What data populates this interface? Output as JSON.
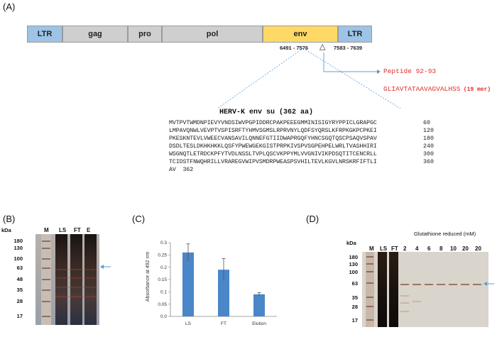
{
  "panel_a": {
    "label": "(A)",
    "genome": {
      "segments": [
        {
          "label": "LTR"
        },
        {
          "label": "gag"
        },
        {
          "label": "pro"
        },
        {
          "label": "pol"
        },
        {
          "label": "env"
        },
        {
          "label": "LTR"
        }
      ],
      "coord_env": "6491 - 7576",
      "coord_ltr": "7583 - 7639",
      "marker": "△"
    },
    "peptide": {
      "title": "Peptide 92-93",
      "sequence": "GLIAVTATAAVAGVALHSS",
      "length": "(19 mer)"
    },
    "sequence_block": {
      "title": "HERV-K env su (362 aa)",
      "lines": [
        {
          "seq": "MVTPVTWMDNPIEVYVNDSIWVPGPIDDRCPAKPEEEGMMINISIGYRYPPICLGRAPGC",
          "num": "60"
        },
        {
          "seq": "LMPAVQNWLVEVPTVSPISRFTYHMVSGMSLRPRVNYLQDFSYQRSLKFRPKGKPCPKEI",
          "num": "120"
        },
        {
          "seq": "PKESKNTEVLVWEECVANSAVILQNNEFGTIIDWAPRGQFYHNCSGQTQSCPSAQVSPAV",
          "num": "180"
        },
        {
          "seq": "DSDLTESLDKHKHKKLQSFYPWEWGEKGISTPRPKIVSPVSGPEHPELWRLTVASHHIRI",
          "num": "240"
        },
        {
          "seq": "WSGNQTLETRDCKPFYTVDLNSSLTVPLQSCVKPPYMLVVGNIVIKPDSQTITCENCRLL",
          "num": "300"
        },
        {
          "seq": "TCIDSTFNWQHRILLVRAREGVWIPVSMDRPWEASPSVHILTEVLKGVLNRSKRFIFTLI",
          "num": "360"
        },
        {
          "seq": "AV  362",
          "num": ""
        }
      ]
    }
  },
  "panel_b": {
    "label": "(B)",
    "kda": "kDa",
    "lanes": [
      "M",
      "LS",
      "FT",
      "E"
    ],
    "markers": [
      "180",
      "130",
      "100",
      "63",
      "48",
      "35",
      "28",
      "17"
    ]
  },
  "panel_c": {
    "label": "(C)",
    "chart_data": {
      "type": "bar",
      "categories": [
        "LS",
        "FT",
        "Elution"
      ],
      "values": [
        0.26,
        0.19,
        0.09
      ],
      "errors": [
        0.035,
        0.045,
        0.007
      ],
      "ylabel": "Absorbance at 492 nm",
      "xlabel": "",
      "ylim": [
        0,
        0.3
      ],
      "yticks": [
        "0.0",
        "0.05",
        "0.1",
        "0.15",
        "0.2",
        "0.25",
        "0.3"
      ],
      "bar_color": "#4a86c8",
      "grid": false
    }
  },
  "panel_d": {
    "label": "(D)",
    "kda": "kDa",
    "header": "Glutathione reduced (mM)",
    "lanes": [
      "M",
      "LS",
      "FT",
      "2",
      "4",
      "6",
      "8",
      "10",
      "20",
      "20"
    ],
    "markers": [
      "180",
      "130",
      "100",
      "63",
      "35",
      "28",
      "17"
    ]
  },
  "colors": {
    "arrow": "#5b9bd5",
    "peptide_red": "#e0302a",
    "dotted": "#5b9bd5"
  }
}
